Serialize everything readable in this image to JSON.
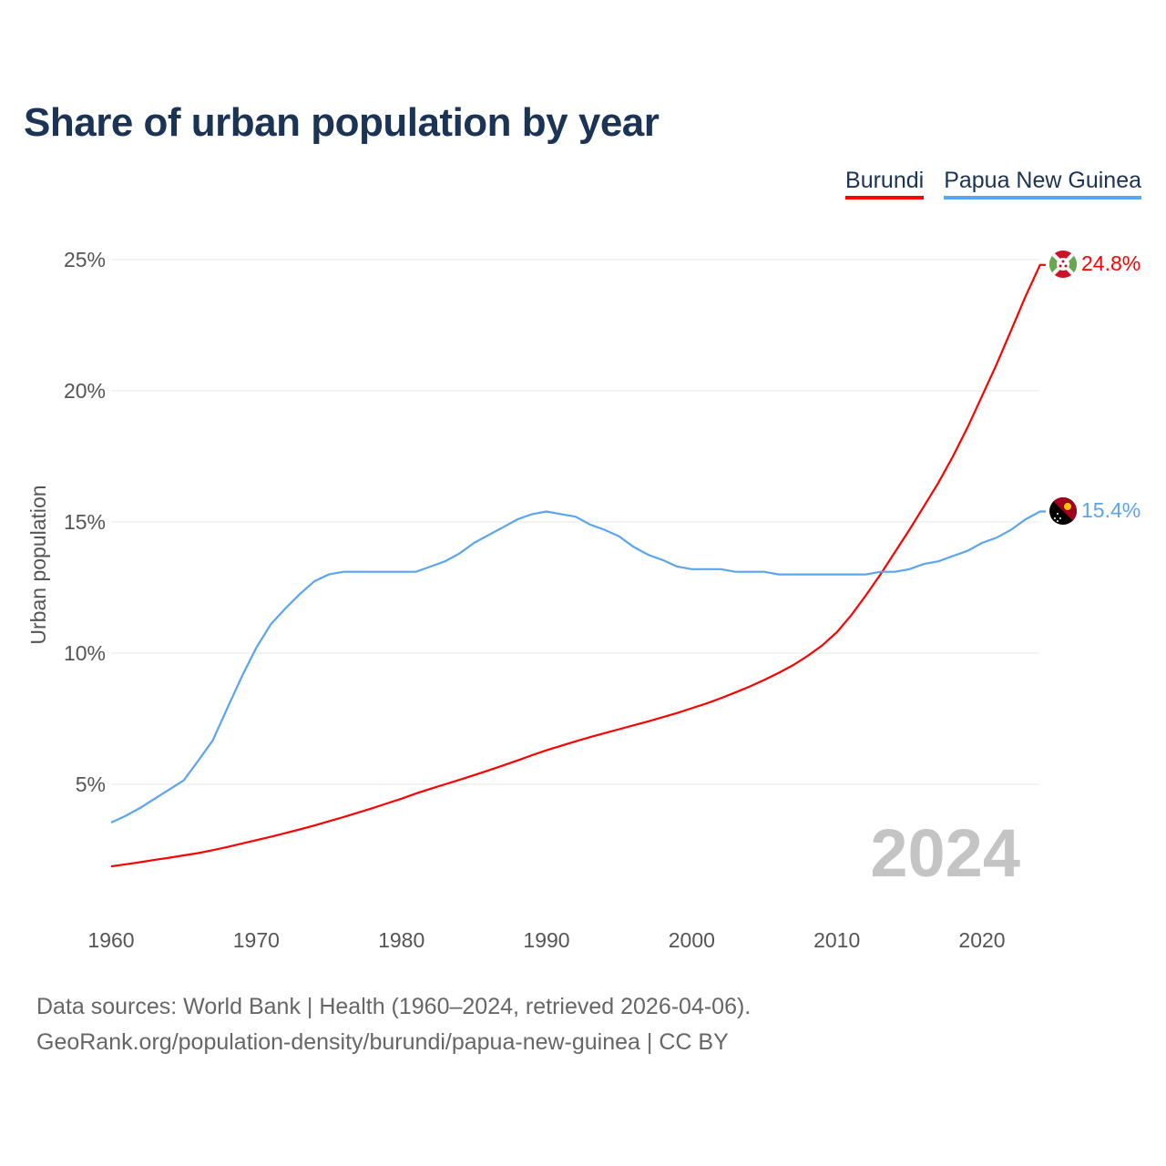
{
  "title": "Share of urban population by year",
  "legend": [
    {
      "label": "Burundi",
      "color": "#ff0000"
    },
    {
      "label": "Papua New Guinea",
      "color": "#5ba4ee"
    }
  ],
  "footer": {
    "line1": "Data sources: World Bank | Health (1960–2024, retrieved 2026-04-06).",
    "line2": "GeoRank.org/population-density/burundi/papua-new-guinea | CC BY"
  },
  "chart_data": {
    "type": "line",
    "title": "Share of urban population by year",
    "xlabel": "",
    "ylabel": "Urban population",
    "xlim": [
      1960,
      2024
    ],
    "ylim": [
      0,
      26
    ],
    "grid": true,
    "legend_position": "top-right",
    "x_ticks": [
      "1960",
      "1970",
      "1980",
      "1990",
      "2000",
      "2010",
      "2020"
    ],
    "y_ticks": [
      {
        "value": 5,
        "label": "5%"
      },
      {
        "value": 10,
        "label": "10%"
      },
      {
        "value": 15,
        "label": "15%"
      },
      {
        "value": 20,
        "label": "20%"
      },
      {
        "value": 25,
        "label": "25%"
      }
    ],
    "watermark_year": "2024",
    "x_start": 1960,
    "series": [
      {
        "name": "Burundi",
        "color": "#ff0000",
        "end_label": "24.8%",
        "flag": "burundi-flag",
        "values": [
          1.87,
          1.95,
          2.03,
          2.12,
          2.2,
          2.29,
          2.38,
          2.49,
          2.61,
          2.74,
          2.87,
          3.0,
          3.14,
          3.28,
          3.43,
          3.59,
          3.75,
          3.92,
          4.09,
          4.27,
          4.45,
          4.65,
          4.83,
          5.0,
          5.17,
          5.35,
          5.53,
          5.72,
          5.91,
          6.11,
          6.3,
          6.47,
          6.64,
          6.8,
          6.95,
          7.1,
          7.25,
          7.4,
          7.56,
          7.72,
          7.9,
          8.08,
          8.28,
          8.5,
          8.73,
          8.98,
          9.25,
          9.55,
          9.9,
          10.3,
          10.8,
          11.45,
          12.2,
          13.0,
          13.85,
          14.7,
          15.6,
          16.5,
          17.5,
          18.6,
          19.8,
          21.0,
          22.3,
          23.6,
          24.8
        ]
      },
      {
        "name": "Papua New Guinea",
        "color": "#5ba4ee",
        "end_label": "15.4%",
        "flag": "png-flag",
        "values": [
          3.54,
          3.8,
          4.1,
          4.45,
          4.8,
          5.15,
          5.9,
          6.67,
          7.9,
          9.1,
          10.2,
          11.1,
          11.7,
          12.25,
          12.74,
          13.0,
          13.1,
          13.1,
          13.1,
          13.1,
          13.1,
          13.1,
          13.3,
          13.5,
          13.8,
          14.2,
          14.5,
          14.8,
          15.1,
          15.3,
          15.4,
          15.3,
          15.2,
          14.9,
          14.7,
          14.45,
          14.05,
          13.75,
          13.55,
          13.3,
          13.2,
          13.2,
          13.2,
          13.1,
          13.1,
          13.1,
          13.0,
          13.0,
          13.0,
          13.0,
          13.0,
          13.0,
          13.0,
          13.1,
          13.1,
          13.2,
          13.4,
          13.5,
          13.7,
          13.9,
          14.2,
          14.4,
          14.7,
          15.1,
          15.4
        ]
      }
    ]
  }
}
